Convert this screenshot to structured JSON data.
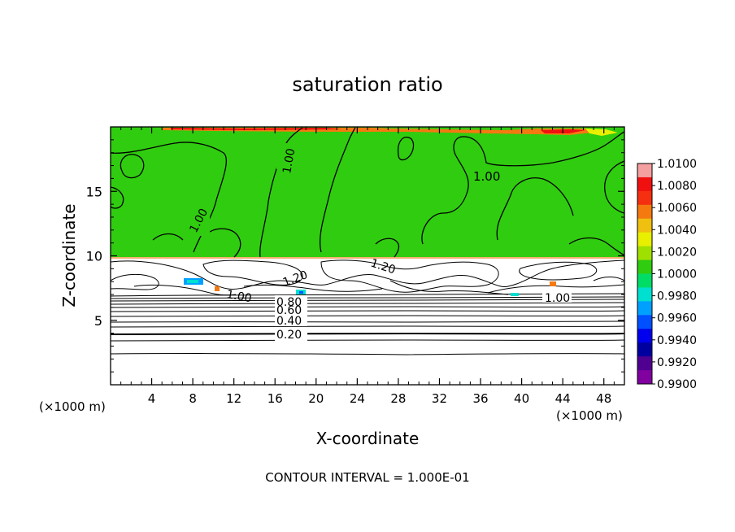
{
  "chart_data": {
    "type": "heatmap",
    "title": "saturation ratio",
    "xlabel": "X-coordinate",
    "ylabel": "Z-coordinate",
    "x_unit_left": "(×1000 m)",
    "x_unit_right": "(×1000 m)",
    "xlim": [
      0,
      50
    ],
    "ylim": [
      0,
      20
    ],
    "x_ticks": [
      4,
      8,
      12,
      16,
      20,
      24,
      28,
      32,
      36,
      40,
      44,
      48
    ],
    "y_ticks": [
      5,
      10,
      15
    ],
    "colorbar": {
      "labels": [
        "1.0100",
        "1.0080",
        "1.0060",
        "1.0040",
        "1.0020",
        "1.0000",
        "0.9980",
        "0.9960",
        "0.9940",
        "0.9920",
        "0.9900"
      ],
      "colors": [
        "#f4a0a0",
        "#f01010",
        "#f43010",
        "#f47a10",
        "#f0c010",
        "#e8f000",
        "#a0e000",
        "#30cc10",
        "#00dd66",
        "#00e0d0",
        "#00a0ff",
        "#0050ff",
        "#0000ee",
        "#0000a0",
        "#500090",
        "#8000a0"
      ]
    },
    "contour_labels": [
      {
        "text": "1.00",
        "x": 17.3,
        "z": 16.5
      },
      {
        "text": "1.00",
        "x": 36.5,
        "z": 16.0
      },
      {
        "text": "1.00",
        "x": 9.0,
        "z": 12.5
      },
      {
        "text": "1.20",
        "x": 18.2,
        "z": 8.4
      },
      {
        "text": "1.20",
        "x": 26.3,
        "z": 9.0
      },
      {
        "text": "1.00",
        "x": 12.7,
        "z": 7.0
      },
      {
        "text": "1.00",
        "x": 43.0,
        "z": 6.8
      },
      {
        "text": "0.80",
        "x": 17.6,
        "z": 6.4
      },
      {
        "text": "0.60",
        "x": 17.6,
        "z": 5.9
      },
      {
        "text": "0.40",
        "x": 17.6,
        "z": 5.0
      },
      {
        "text": "0.20",
        "x": 17.6,
        "z": 3.9
      }
    ],
    "contour_interval_text": "CONTOUR INTERVAL = 1.000E-01"
  }
}
